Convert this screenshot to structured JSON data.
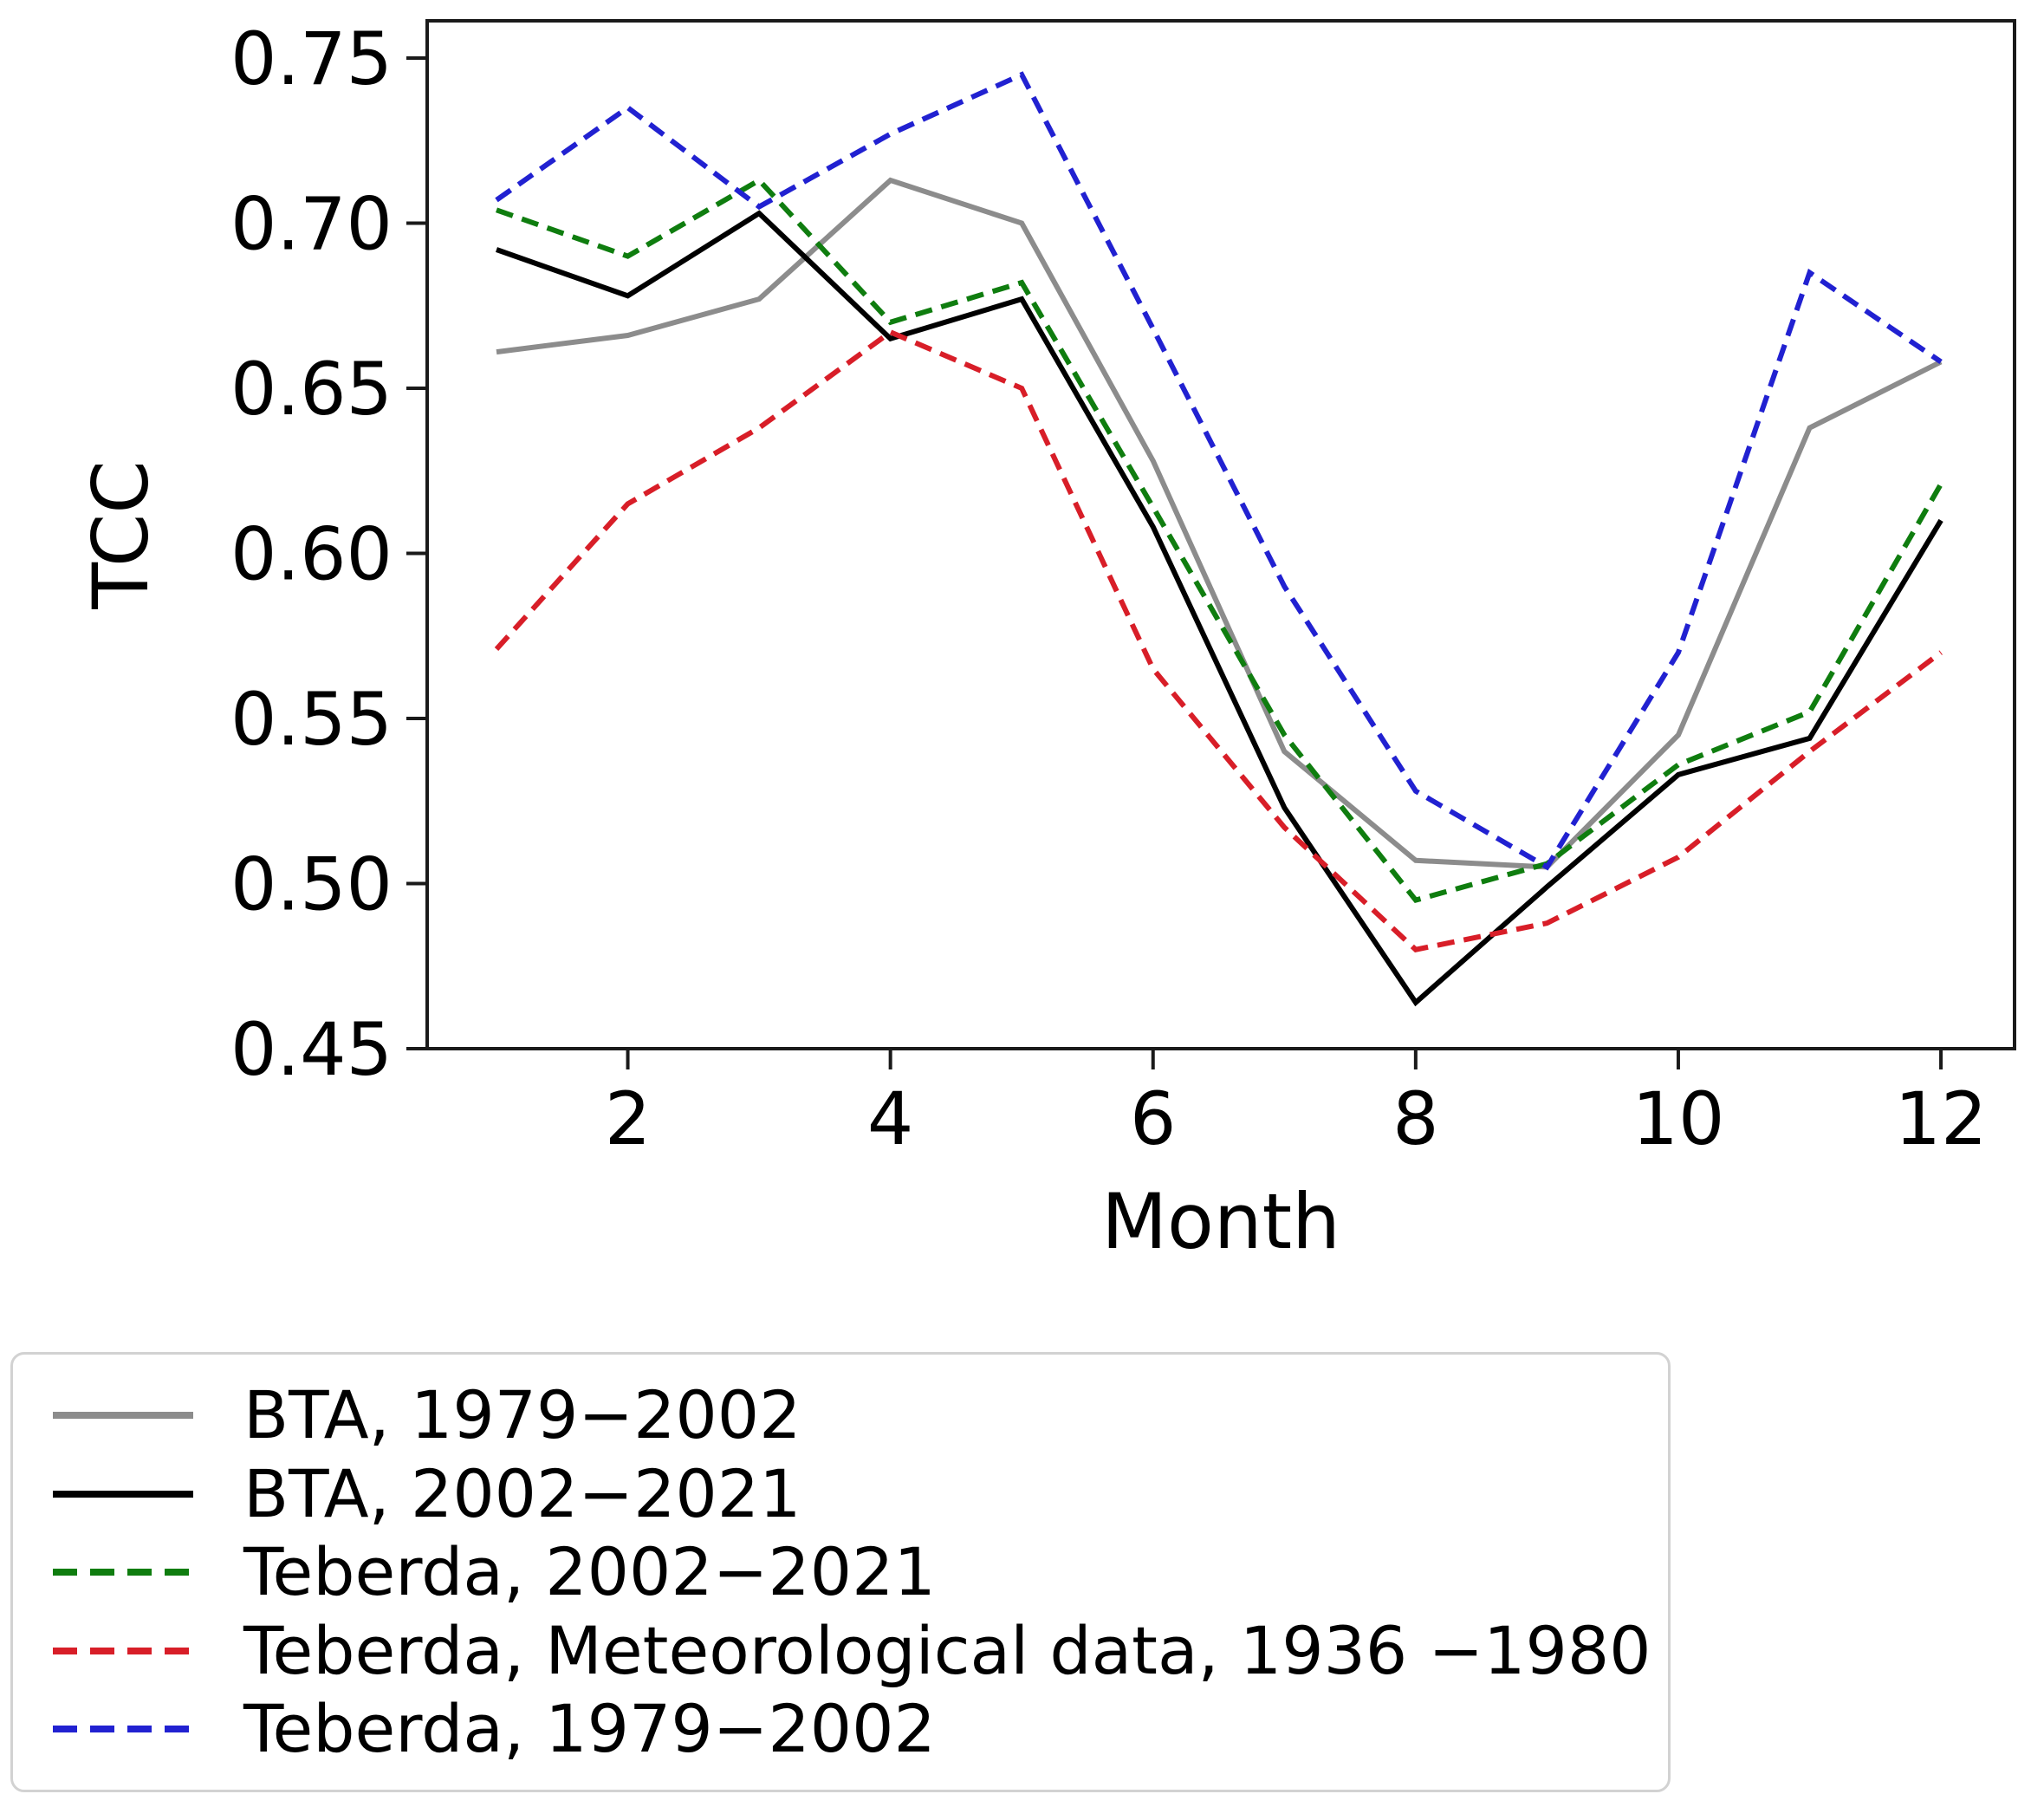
{
  "chart_data": {
    "type": "line",
    "title": "",
    "xlabel": "Month",
    "ylabel": "TCC",
    "x": [
      1,
      2,
      3,
      4,
      5,
      6,
      7,
      8,
      9,
      10,
      11,
      12
    ],
    "xtick_values": [
      2,
      4,
      6,
      8,
      10,
      12
    ],
    "xtick_labels": [
      "2",
      "4",
      "6",
      "8",
      "10",
      "12"
    ],
    "ytick_values": [
      0.75,
      0.7,
      0.65,
      0.6,
      0.55,
      0.5,
      0.45
    ],
    "ytick_labels": [
      "0.75",
      "0.70",
      "0.65",
      "0.60",
      "0.55",
      "0.50",
      "0.45"
    ],
    "ylim": [
      0.45,
      0.7615
    ],
    "xlim": [
      0.47,
      12.56
    ],
    "grid": false,
    "legend_position": "below-left",
    "series": [
      {
        "name": "BTA, 1979−2002",
        "color": "#8c8c8c",
        "line_style": "solid",
        "values": [
          0.661,
          0.666,
          0.677,
          0.713,
          0.7,
          0.628,
          0.54,
          0.507,
          0.505,
          0.545,
          0.638,
          0.658
        ]
      },
      {
        "name": "BTA, 2002−2021",
        "color": "#000000",
        "line_style": "solid",
        "values": [
          0.692,
          0.678,
          0.703,
          0.665,
          0.677,
          0.608,
          0.523,
          0.464,
          0.499,
          0.533,
          0.544,
          0.61
        ]
      },
      {
        "name": "Teberda, 2002−2021",
        "color": "#0f7d0f",
        "line_style": "dashed",
        "values": [
          0.704,
          0.69,
          0.713,
          0.67,
          0.682,
          0.614,
          0.545,
          0.495,
          0.506,
          0.536,
          0.552,
          0.621
        ]
      },
      {
        "name": "Teberda, Meteorological data, 1936 −1980",
        "color": "#d81e28",
        "line_style": "dashed",
        "values": [
          0.571,
          0.615,
          0.638,
          0.667,
          0.65,
          0.565,
          0.517,
          0.48,
          0.488,
          0.508,
          0.54,
          0.57
        ]
      },
      {
        "name": "Teberda, 1979−2002",
        "color": "#2121d1",
        "line_style": "dashed",
        "values": [
          0.707,
          0.735,
          0.705,
          0.727,
          0.745,
          0.668,
          0.59,
          0.528,
          0.505,
          0.57,
          0.685,
          0.658
        ]
      }
    ]
  }
}
